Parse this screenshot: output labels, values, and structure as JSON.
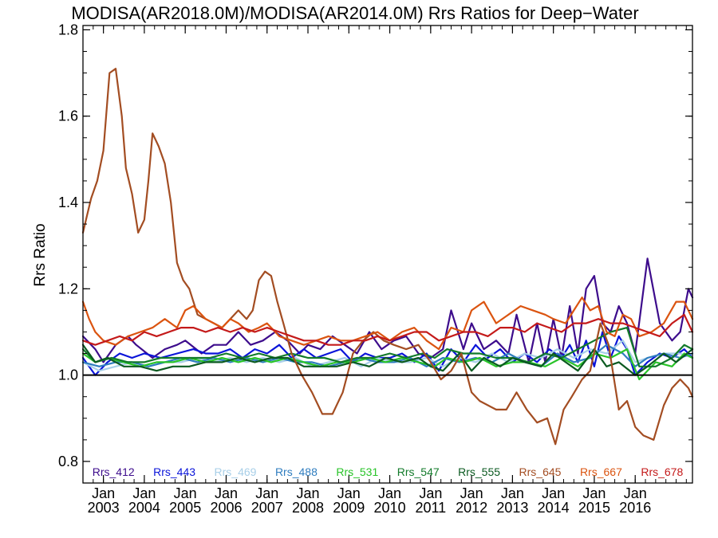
{
  "chart_data": {
    "type": "line",
    "title": "MODISA(AR2018.0M)/MODISA(AR2014.0M)  Rrs Ratios for Deep−Water",
    "xlabel": "",
    "ylabel": "Rrs Ratio",
    "xlim": [
      2002.5,
      2017.4
    ],
    "ylim": [
      0.75,
      1.81
    ],
    "yticks": [
      "0.8",
      "1.0",
      "1.2",
      "1.4",
      "1.6",
      "1.8"
    ],
    "xticks": [
      {
        "top": "Jan",
        "year": "2003"
      },
      {
        "top": "Jan",
        "year": "2004"
      },
      {
        "top": "Jan",
        "year": "2005"
      },
      {
        "top": "Jan",
        "year": "2006"
      },
      {
        "top": "Jan",
        "year": "2007"
      },
      {
        "top": "Jan",
        "year": "2008"
      },
      {
        "top": "Jan",
        "year": "2009"
      },
      {
        "top": "Jan",
        "year": "2010"
      },
      {
        "top": "Jan",
        "year": "2011"
      },
      {
        "top": "Jan",
        "year": "2012"
      },
      {
        "top": "Jan",
        "year": "2013"
      },
      {
        "top": "Jan",
        "year": "2014"
      },
      {
        "top": "Jan",
        "year": "2015"
      },
      {
        "top": "Jan",
        "year": "2016"
      }
    ],
    "reference_line": 1.0,
    "legend_position": "bottom",
    "series": [
      {
        "name": "Rrs_412",
        "color": "#3d0c8c",
        "x": [
          2002.5,
          2002.8,
          2003.0,
          2003.3,
          2003.6,
          2003.8,
          2004.2,
          2004.5,
          2004.8,
          2005.0,
          2005.4,
          2005.7,
          2006.0,
          2006.3,
          2006.6,
          2006.9,
          2007.2,
          2007.5,
          2007.8,
          2008.0,
          2008.3,
          2008.6,
          2008.9,
          2009.2,
          2009.5,
          2009.8,
          2010.1,
          2010.4,
          2010.7,
          2011.0,
          2011.3,
          2011.5,
          2011.8,
          2012.0,
          2012.3,
          2012.6,
          2012.9,
          2013.1,
          2013.4,
          2013.6,
          2013.8,
          2014.0,
          2014.2,
          2014.4,
          2014.6,
          2014.8,
          2015.0,
          2015.2,
          2015.4,
          2015.6,
          2015.8,
          2016.0,
          2016.3,
          2016.6,
          2016.9,
          2017.1,
          2017.3,
          2017.4
        ],
        "y": [
          1.09,
          1.06,
          1.03,
          1.07,
          1.09,
          1.07,
          1.04,
          1.06,
          1.07,
          1.08,
          1.05,
          1.07,
          1.07,
          1.1,
          1.07,
          1.08,
          1.1,
          1.08,
          1.05,
          1.07,
          1.06,
          1.09,
          1.07,
          1.05,
          1.1,
          1.06,
          1.08,
          1.09,
          1.05,
          1.04,
          1.06,
          1.15,
          1.06,
          1.12,
          1.06,
          1.08,
          1.05,
          1.14,
          1.03,
          1.12,
          1.03,
          1.13,
          1.04,
          1.16,
          1.05,
          1.2,
          1.23,
          1.12,
          1.1,
          1.16,
          1.12,
          1.05,
          1.27,
          1.12,
          1.08,
          1.1,
          1.2,
          1.18
        ]
      },
      {
        "name": "Rrs_443",
        "color": "#0a14d9",
        "x": [
          2002.5,
          2002.8,
          2003.1,
          2003.4,
          2003.7,
          2004.0,
          2004.4,
          2004.8,
          2005.2,
          2005.5,
          2005.8,
          2006.1,
          2006.4,
          2006.7,
          2007.0,
          2007.3,
          2007.6,
          2007.9,
          2008.2,
          2008.5,
          2008.8,
          2009.1,
          2009.4,
          2009.7,
          2010.0,
          2010.3,
          2010.6,
          2010.9,
          2011.2,
          2011.5,
          2011.8,
          2012.1,
          2012.4,
          2012.7,
          2013.0,
          2013.3,
          2013.6,
          2013.9,
          2014.2,
          2014.4,
          2014.6,
          2014.8,
          2015.0,
          2015.2,
          2015.4,
          2015.6,
          2015.8,
          2016.0,
          2016.3,
          2016.6,
          2016.9,
          2017.2,
          2017.4
        ],
        "y": [
          1.04,
          1.0,
          1.03,
          1.05,
          1.04,
          1.05,
          1.04,
          1.05,
          1.06,
          1.05,
          1.05,
          1.06,
          1.04,
          1.06,
          1.05,
          1.07,
          1.04,
          1.06,
          1.04,
          1.05,
          1.06,
          1.03,
          1.05,
          1.04,
          1.04,
          1.05,
          1.03,
          1.05,
          1.01,
          1.06,
          1.03,
          1.07,
          1.04,
          1.06,
          1.03,
          1.05,
          1.03,
          1.06,
          1.04,
          1.07,
          1.03,
          1.08,
          1.02,
          1.1,
          1.04,
          1.09,
          1.06,
          1.0,
          1.03,
          1.05,
          1.04,
          1.06,
          1.04
        ]
      },
      {
        "name": "Rrs_469",
        "color": "#a8cfe8",
        "x": [
          2002.5,
          2002.9,
          2003.3,
          2003.7,
          2004.1,
          2004.5,
          2004.9,
          2005.3,
          2005.7,
          2006.1,
          2006.5,
          2006.9,
          2007.3,
          2007.7,
          2008.1,
          2008.5,
          2008.9,
          2009.3,
          2009.7,
          2010.1,
          2010.5,
          2010.9,
          2011.3,
          2011.7,
          2012.1,
          2012.5,
          2012.9,
          2013.3,
          2013.7,
          2014.1,
          2014.5,
          2014.9,
          2015.3,
          2015.7,
          2016.0,
          2016.3,
          2016.7,
          2017.1,
          2017.4
        ],
        "y": [
          1.03,
          1.01,
          1.02,
          1.03,
          1.02,
          1.03,
          1.03,
          1.04,
          1.03,
          1.04,
          1.03,
          1.04,
          1.03,
          1.04,
          1.02,
          1.03,
          1.04,
          1.02,
          1.04,
          1.03,
          1.03,
          1.04,
          1.02,
          1.04,
          1.03,
          1.05,
          1.03,
          1.05,
          1.04,
          1.06,
          1.04,
          1.06,
          1.05,
          1.08,
          1.03,
          1.04,
          1.05,
          1.05,
          1.04
        ]
      },
      {
        "name": "Rrs_488",
        "color": "#2f7dbf",
        "x": [
          2002.5,
          2002.9,
          2003.3,
          2003.7,
          2004.1,
          2004.5,
          2004.9,
          2005.3,
          2005.7,
          2006.1,
          2006.5,
          2006.9,
          2007.3,
          2007.7,
          2008.1,
          2008.5,
          2008.9,
          2009.3,
          2009.7,
          2010.1,
          2010.5,
          2010.9,
          2011.3,
          2011.7,
          2012.1,
          2012.5,
          2012.9,
          2013.3,
          2013.7,
          2014.1,
          2014.5,
          2014.9,
          2015.3,
          2015.7,
          2016.0,
          2016.3,
          2016.7,
          2017.1,
          2017.4
        ],
        "y": [
          1.03,
          1.02,
          1.03,
          1.03,
          1.02,
          1.03,
          1.04,
          1.03,
          1.04,
          1.03,
          1.04,
          1.03,
          1.04,
          1.03,
          1.03,
          1.02,
          1.03,
          1.04,
          1.03,
          1.03,
          1.04,
          1.02,
          1.04,
          1.03,
          1.04,
          1.03,
          1.05,
          1.03,
          1.02,
          1.05,
          1.03,
          1.04,
          1.07,
          1.05,
          1.02,
          1.04,
          1.05,
          1.04,
          1.05
        ]
      },
      {
        "name": "Rrs_531",
        "color": "#29c429",
        "x": [
          2002.5,
          2002.8,
          2003.1,
          2003.5,
          2003.9,
          2004.3,
          2004.7,
          2005.1,
          2005.5,
          2005.9,
          2006.3,
          2006.7,
          2007.1,
          2007.5,
          2007.9,
          2008.3,
          2008.7,
          2009.1,
          2009.5,
          2009.9,
          2010.3,
          2010.7,
          2011.1,
          2011.4,
          2011.8,
          2012.2,
          2012.6,
          2013.0,
          2013.4,
          2013.8,
          2014.2,
          2014.6,
          2015.0,
          2015.4,
          2015.8,
          2016.1,
          2016.5,
          2016.9,
          2017.2,
          2017.4
        ],
        "y": [
          1.05,
          1.03,
          1.04,
          1.03,
          1.02,
          1.03,
          1.03,
          1.04,
          1.03,
          1.04,
          1.03,
          1.04,
          1.03,
          1.04,
          1.03,
          1.02,
          1.03,
          1.03,
          1.04,
          1.03,
          1.04,
          1.03,
          1.02,
          1.04,
          1.03,
          1.04,
          1.02,
          1.03,
          1.03,
          1.02,
          1.04,
          1.02,
          1.05,
          1.04,
          1.06,
          0.99,
          1.03,
          1.02,
          1.05,
          1.04
        ]
      },
      {
        "name": "Rrs_547",
        "color": "#127a2a",
        "x": [
          2002.5,
          2002.8,
          2003.2,
          2003.6,
          2004.0,
          2004.4,
          2004.8,
          2005.2,
          2005.6,
          2006.0,
          2006.4,
          2006.8,
          2007.2,
          2007.6,
          2008.0,
          2008.4,
          2008.8,
          2009.2,
          2009.6,
          2010.0,
          2010.4,
          2010.8,
          2011.1,
          2011.4,
          2011.8,
          2012.2,
          2012.6,
          2013.0,
          2013.4,
          2013.8,
          2014.2,
          2014.6,
          2015.0,
          2015.4,
          2015.8,
          2016.1,
          2016.5,
          2016.9,
          2017.2,
          2017.4
        ],
        "y": [
          1.06,
          1.03,
          1.04,
          1.03,
          1.03,
          1.04,
          1.04,
          1.04,
          1.04,
          1.05,
          1.04,
          1.05,
          1.04,
          1.05,
          1.04,
          1.04,
          1.03,
          1.04,
          1.04,
          1.05,
          1.04,
          1.05,
          1.04,
          1.06,
          1.05,
          1.05,
          1.04,
          1.04,
          1.03,
          1.05,
          1.04,
          1.06,
          1.08,
          1.1,
          1.11,
          1.02,
          1.02,
          1.04,
          1.07,
          1.06
        ]
      },
      {
        "name": "Rrs_555",
        "color": "#0b5a20",
        "x": [
          2002.5,
          2002.8,
          2003.1,
          2003.5,
          2003.9,
          2004.3,
          2004.7,
          2005.1,
          2005.5,
          2005.9,
          2006.3,
          2006.7,
          2007.1,
          2007.5,
          2007.9,
          2008.3,
          2008.7,
          2009.1,
          2009.5,
          2009.9,
          2010.3,
          2010.7,
          2011.0,
          2011.3,
          2011.7,
          2012.0,
          2012.3,
          2012.7,
          2013.0,
          2013.3,
          2013.7,
          2014.0,
          2014.3,
          2014.6,
          2015.0,
          2015.3,
          2015.6,
          2016.0,
          2016.3,
          2016.7,
          2017.0,
          2017.4
        ],
        "y": [
          1.07,
          1.03,
          1.04,
          1.02,
          1.02,
          1.01,
          1.02,
          1.02,
          1.03,
          1.03,
          1.04,
          1.03,
          1.04,
          1.04,
          1.02,
          1.02,
          1.02,
          1.03,
          1.02,
          1.04,
          1.03,
          1.04,
          1.02,
          1.01,
          1.05,
          1.01,
          1.04,
          1.02,
          1.04,
          1.03,
          1.02,
          1.05,
          1.03,
          1.01,
          1.06,
          1.02,
          1.03,
          1.0,
          1.02,
          1.05,
          1.03,
          1.06
        ]
      },
      {
        "name": "Rrs_645",
        "color": "#a34d22",
        "x": [
          2002.5,
          2002.6,
          2002.7,
          2002.85,
          2003.0,
          2003.15,
          2003.3,
          2003.45,
          2003.55,
          2003.7,
          2003.85,
          2004.0,
          2004.1,
          2004.2,
          2004.35,
          2004.5,
          2004.65,
          2004.8,
          2004.95,
          2005.1,
          2005.3,
          2005.5,
          2005.7,
          2005.9,
          2006.1,
          2006.3,
          2006.5,
          2006.65,
          2006.8,
          2006.95,
          2007.1,
          2007.25,
          2007.4,
          2007.6,
          2007.85,
          2008.1,
          2008.35,
          2008.6,
          2008.85,
          2009.1,
          2009.35,
          2009.6,
          2009.85,
          2010.1,
          2010.4,
          2010.7,
          2011.0,
          2011.25,
          2011.5,
          2011.75,
          2012.0,
          2012.2,
          2012.4,
          2012.6,
          2012.85,
          2013.1,
          2013.35,
          2013.6,
          2013.85,
          2014.05,
          2014.25,
          2014.45,
          2014.7,
          2014.9,
          2015.15,
          2015.35,
          2015.6,
          2015.8,
          2016.0,
          2016.2,
          2016.45,
          2016.7,
          2016.9,
          2017.1,
          2017.3,
          2017.4
        ],
        "y": [
          1.33,
          1.37,
          1.41,
          1.45,
          1.52,
          1.7,
          1.71,
          1.6,
          1.48,
          1.42,
          1.33,
          1.36,
          1.45,
          1.56,
          1.53,
          1.49,
          1.4,
          1.26,
          1.22,
          1.2,
          1.14,
          1.13,
          1.12,
          1.11,
          1.13,
          1.15,
          1.13,
          1.15,
          1.22,
          1.24,
          1.23,
          1.17,
          1.12,
          1.05,
          1.0,
          0.96,
          0.91,
          0.91,
          0.96,
          1.05,
          1.08,
          1.1,
          1.08,
          1.07,
          1.06,
          1.07,
          1.03,
          0.99,
          1.01,
          1.05,
          0.96,
          0.94,
          0.93,
          0.92,
          0.92,
          0.96,
          0.92,
          0.89,
          0.9,
          0.84,
          0.92,
          0.95,
          0.99,
          1.01,
          1.12,
          1.07,
          0.92,
          0.94,
          0.88,
          0.86,
          0.85,
          0.93,
          0.97,
          0.99,
          0.97,
          0.95
        ]
      },
      {
        "name": "Rrs_667",
        "color": "#db5410",
        "x": [
          2002.5,
          2002.65,
          2002.8,
          2003.0,
          2003.3,
          2003.6,
          2003.9,
          2004.2,
          2004.5,
          2004.8,
          2005.0,
          2005.2,
          2005.5,
          2005.7,
          2005.9,
          2006.1,
          2006.3,
          2006.55,
          2006.8,
          2007.0,
          2007.3,
          2007.6,
          2007.9,
          2008.2,
          2008.5,
          2008.8,
          2009.1,
          2009.4,
          2009.7,
          2010.0,
          2010.3,
          2010.6,
          2010.9,
          2011.2,
          2011.5,
          2011.8,
          2012.0,
          2012.3,
          2012.6,
          2012.9,
          2013.2,
          2013.5,
          2013.8,
          2014.0,
          2014.3,
          2014.5,
          2014.7,
          2014.9,
          2015.1,
          2015.3,
          2015.5,
          2015.7,
          2015.9,
          2016.1,
          2016.4,
          2016.7,
          2017.0,
          2017.2,
          2017.4
        ],
        "y": [
          1.17,
          1.13,
          1.1,
          1.08,
          1.07,
          1.09,
          1.1,
          1.11,
          1.13,
          1.11,
          1.15,
          1.16,
          1.13,
          1.12,
          1.11,
          1.13,
          1.12,
          1.1,
          1.11,
          1.12,
          1.09,
          1.08,
          1.07,
          1.08,
          1.09,
          1.08,
          1.08,
          1.09,
          1.1,
          1.08,
          1.1,
          1.11,
          1.08,
          1.06,
          1.11,
          1.1,
          1.15,
          1.17,
          1.12,
          1.14,
          1.16,
          1.15,
          1.14,
          1.13,
          1.12,
          1.15,
          1.18,
          1.15,
          1.16,
          1.1,
          1.09,
          1.14,
          1.13,
          1.09,
          1.1,
          1.12,
          1.17,
          1.17,
          1.13
        ]
      },
      {
        "name": "Rrs_678",
        "color": "#c41a1a",
        "x": [
          2002.5,
          2002.8,
          2003.1,
          2003.4,
          2003.7,
          2004.0,
          2004.3,
          2004.6,
          2004.9,
          2005.2,
          2005.5,
          2005.8,
          2006.1,
          2006.4,
          2006.7,
          2007.0,
          2007.3,
          2007.6,
          2007.9,
          2008.2,
          2008.5,
          2008.8,
          2009.1,
          2009.4,
          2009.7,
          2010.0,
          2010.3,
          2010.6,
          2010.9,
          2011.2,
          2011.5,
          2011.8,
          2012.1,
          2012.4,
          2012.7,
          2013.0,
          2013.3,
          2013.6,
          2013.9,
          2014.2,
          2014.5,
          2014.8,
          2015.1,
          2015.4,
          2015.7,
          2016.0,
          2016.3,
          2016.6,
          2016.9,
          2017.2,
          2017.4
        ],
        "y": [
          1.08,
          1.07,
          1.08,
          1.09,
          1.08,
          1.1,
          1.09,
          1.1,
          1.11,
          1.11,
          1.1,
          1.11,
          1.1,
          1.11,
          1.1,
          1.11,
          1.1,
          1.09,
          1.08,
          1.08,
          1.07,
          1.07,
          1.08,
          1.08,
          1.09,
          1.08,
          1.09,
          1.1,
          1.1,
          1.08,
          1.09,
          1.1,
          1.1,
          1.09,
          1.11,
          1.11,
          1.1,
          1.12,
          1.11,
          1.1,
          1.12,
          1.12,
          1.13,
          1.12,
          1.12,
          1.11,
          1.1,
          1.09,
          1.12,
          1.14,
          1.1
        ]
      }
    ]
  }
}
